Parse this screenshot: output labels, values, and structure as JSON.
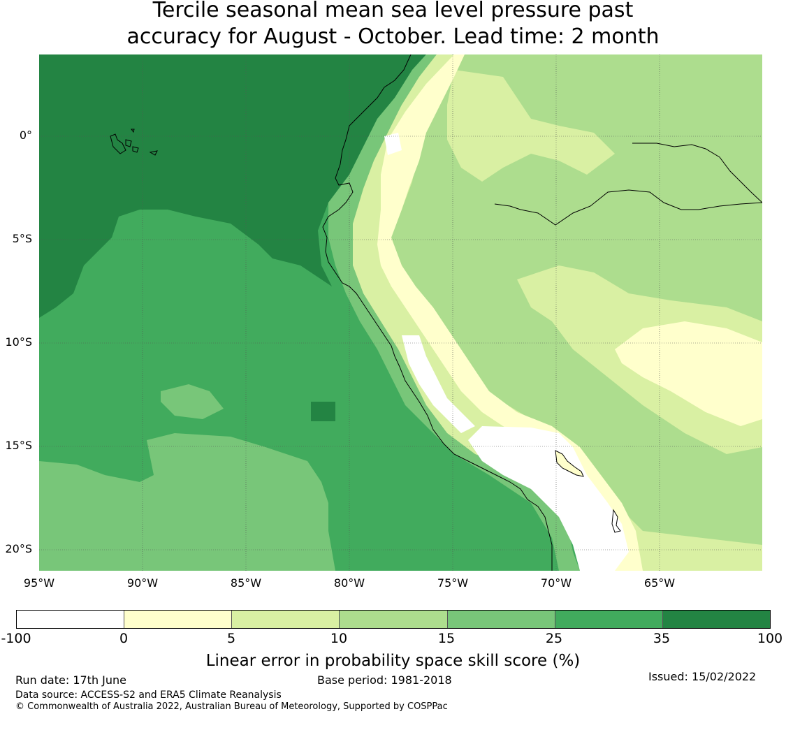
{
  "title_line1": "Tercile seasonal mean sea level pressure past",
  "title_line2": "accuracy for August - October. Lead time: 2 month",
  "lat_labels": [
    "0°",
    "5°S",
    "10°S",
    "15°S",
    "20°S"
  ],
  "lon_labels": [
    "95°W",
    "90°W",
    "85°W",
    "80°W",
    "75°W",
    "70°W",
    "65°W"
  ],
  "colorbar": {
    "ticks": [
      "-100",
      "0",
      "5",
      "10",
      "15",
      "25",
      "35",
      "100"
    ],
    "colors": [
      "#ffffff",
      "#ffffcc",
      "#d9f0a3",
      "#addd8e",
      "#78c679",
      "#41ab5d",
      "#238443"
    ],
    "label": "Linear error in probability space skill score (%)"
  },
  "footer": {
    "run_date": "Run date: 17th June",
    "base_period": "Base period: 1981-2018",
    "issued": "Issued: 15/02/2022",
    "data_source": "Data source: ACCESS-S2 and ERA5 Climate Reanalysis",
    "copyright": "© Commonwealth of Australia 2022, Australian Bureau of Meteorology, Supported by COSPPac"
  },
  "map_colors": {
    "c35": "#238443",
    "c25": "#41ab5d",
    "c15": "#78c679",
    "c10": "#addd8e",
    "c5": "#d9f0a3",
    "c0": "#ffffcc",
    "cneg": "#ffffff"
  }
}
